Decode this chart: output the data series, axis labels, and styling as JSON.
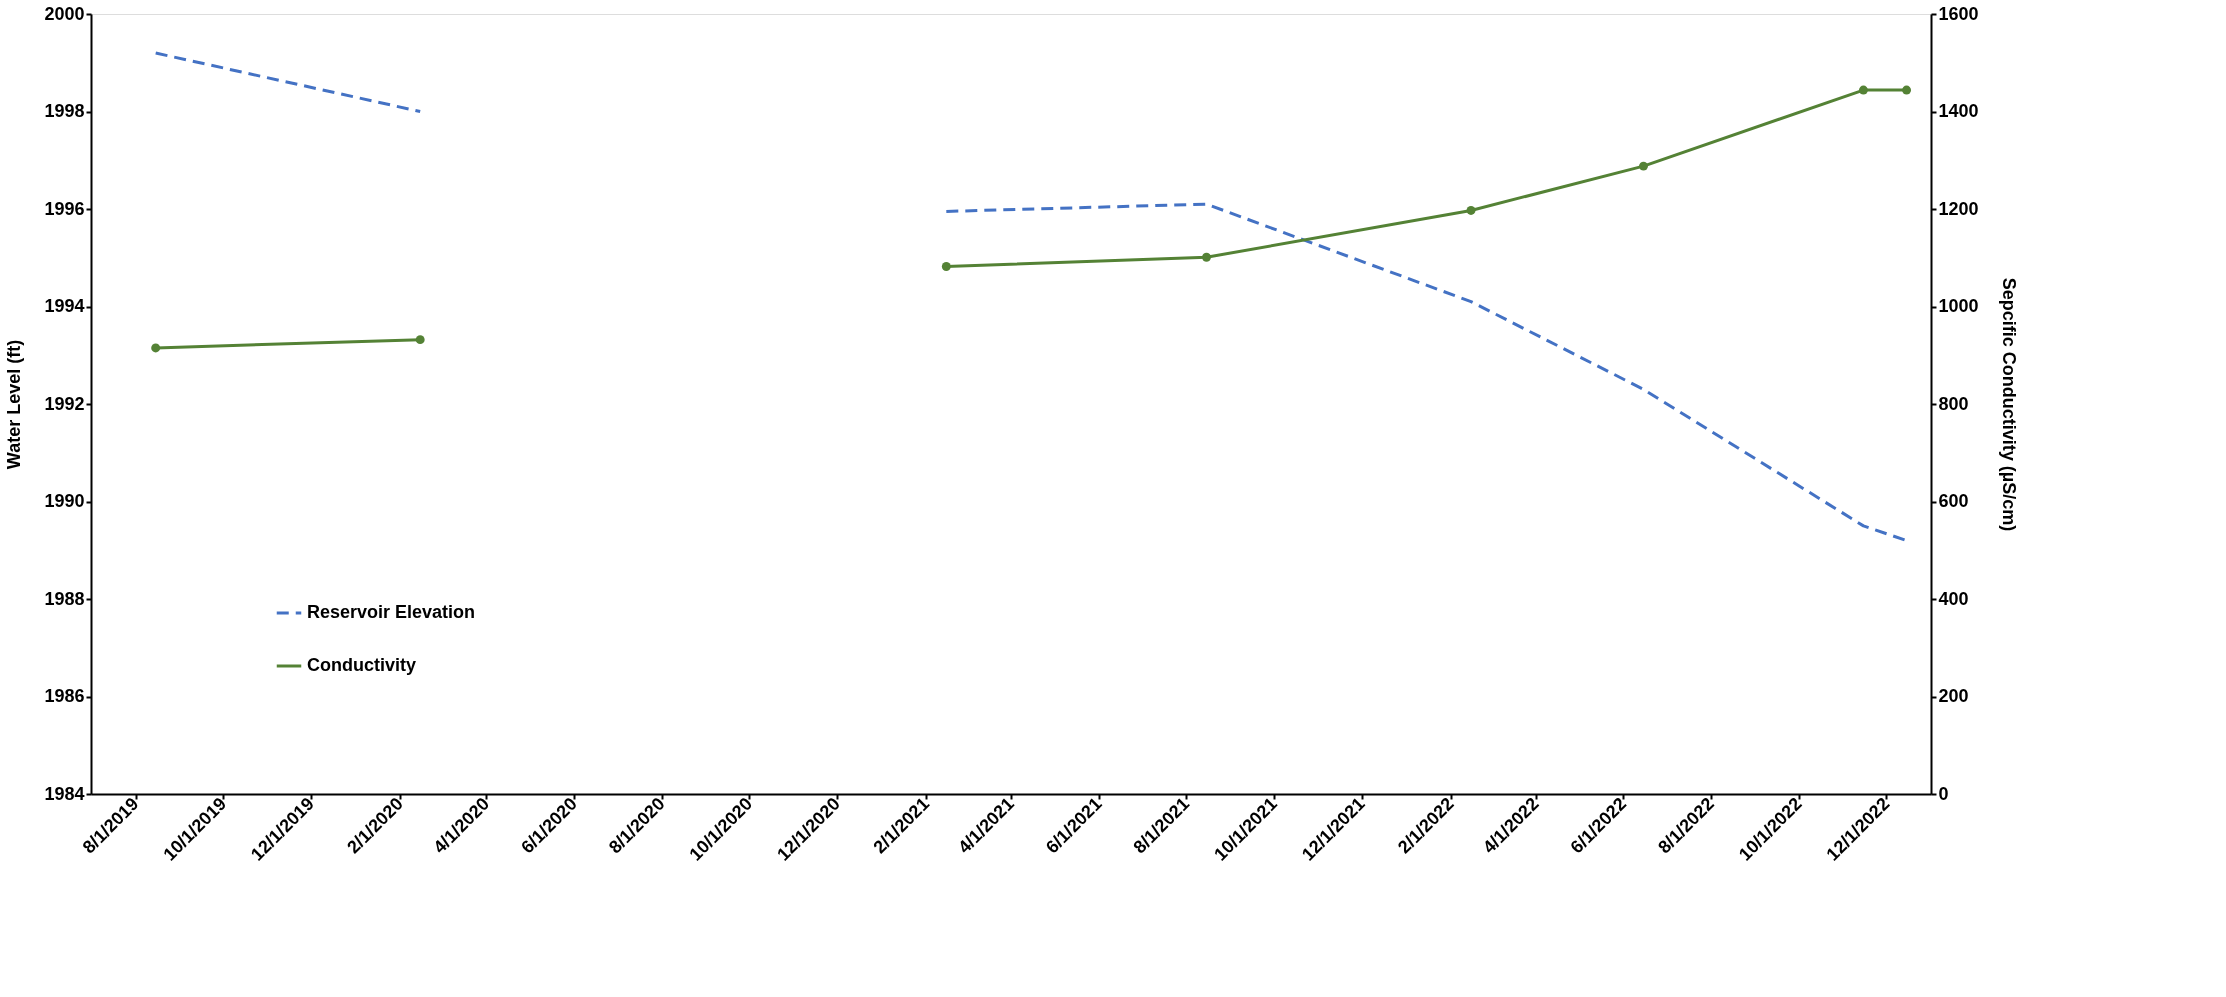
{
  "chart_data": {
    "type": "line",
    "x": [
      "2019-08-15",
      "2020-02-15",
      "2020-08-15",
      "2021-02-15",
      "2021-08-15",
      "2022-02-15",
      "2022-06-15",
      "2022-11-15",
      "2022-12-15"
    ],
    "series": [
      {
        "name": "Reservoir Elevation",
        "color": "#4472c4",
        "line_style": "dashed",
        "marker": "none",
        "values": [
          1999.2,
          1998.0,
          null,
          1995.95,
          1996.1,
          1994.1,
          1992.3,
          1989.5,
          1989.2
        ]
      },
      {
        "name": "Conductivity",
        "color": "#548235",
        "line_style": "solid",
        "marker": "circle",
        "axis": "y2",
        "values": [
          915,
          932,
          null,
          1082,
          1101,
          1197,
          1288,
          1444,
          1444
        ]
      }
    ],
    "xlim": [
      "2019-07-01",
      "2023-01-01"
    ],
    "xticks": [
      {
        "value": "2019-08-01",
        "label": "8/1/2019"
      },
      {
        "value": "2019-10-01",
        "label": "10/1/2019"
      },
      {
        "value": "2019-12-01",
        "label": "12/1/2019"
      },
      {
        "value": "2020-02-01",
        "label": "2/1/2020"
      },
      {
        "value": "2020-04-01",
        "label": "4/1/2020"
      },
      {
        "value": "2020-06-01",
        "label": "6/1/2020"
      },
      {
        "value": "2020-08-01",
        "label": "8/1/2020"
      },
      {
        "value": "2020-10-01",
        "label": "10/1/2020"
      },
      {
        "value": "2020-12-01",
        "label": "12/1/2020"
      },
      {
        "value": "2021-02-01",
        "label": "2/1/2021"
      },
      {
        "value": "2021-04-01",
        "label": "4/1/2021"
      },
      {
        "value": "2021-06-01",
        "label": "6/1/2021"
      },
      {
        "value": "2021-08-01",
        "label": "8/1/2021"
      },
      {
        "value": "2021-10-01",
        "label": "10/1/2021"
      },
      {
        "value": "2021-12-01",
        "label": "12/1/2021"
      },
      {
        "value": "2022-02-01",
        "label": "2/1/2022"
      },
      {
        "value": "2022-04-01",
        "label": "4/1/2022"
      },
      {
        "value": "2022-06-01",
        "label": "6/1/2022"
      },
      {
        "value": "2022-08-01",
        "label": "8/1/2022"
      },
      {
        "value": "2022-10-01",
        "label": "10/1/2022"
      },
      {
        "value": "2022-12-01",
        "label": "12/1/2022"
      }
    ],
    "ylim": [
      1984,
      2000
    ],
    "yticks": [
      1984,
      1986,
      1988,
      1990,
      1992,
      1994,
      1996,
      1998,
      2000
    ],
    "y2lim": [
      0,
      1600
    ],
    "y2ticks": [
      0,
      200,
      400,
      600,
      800,
      1000,
      1200,
      1400,
      1600
    ],
    "ylabel": "Water Level (ft)",
    "y2label": "Sepcific Conductivity (µS/cm)",
    "legend": "bottom left",
    "grid": false
  }
}
